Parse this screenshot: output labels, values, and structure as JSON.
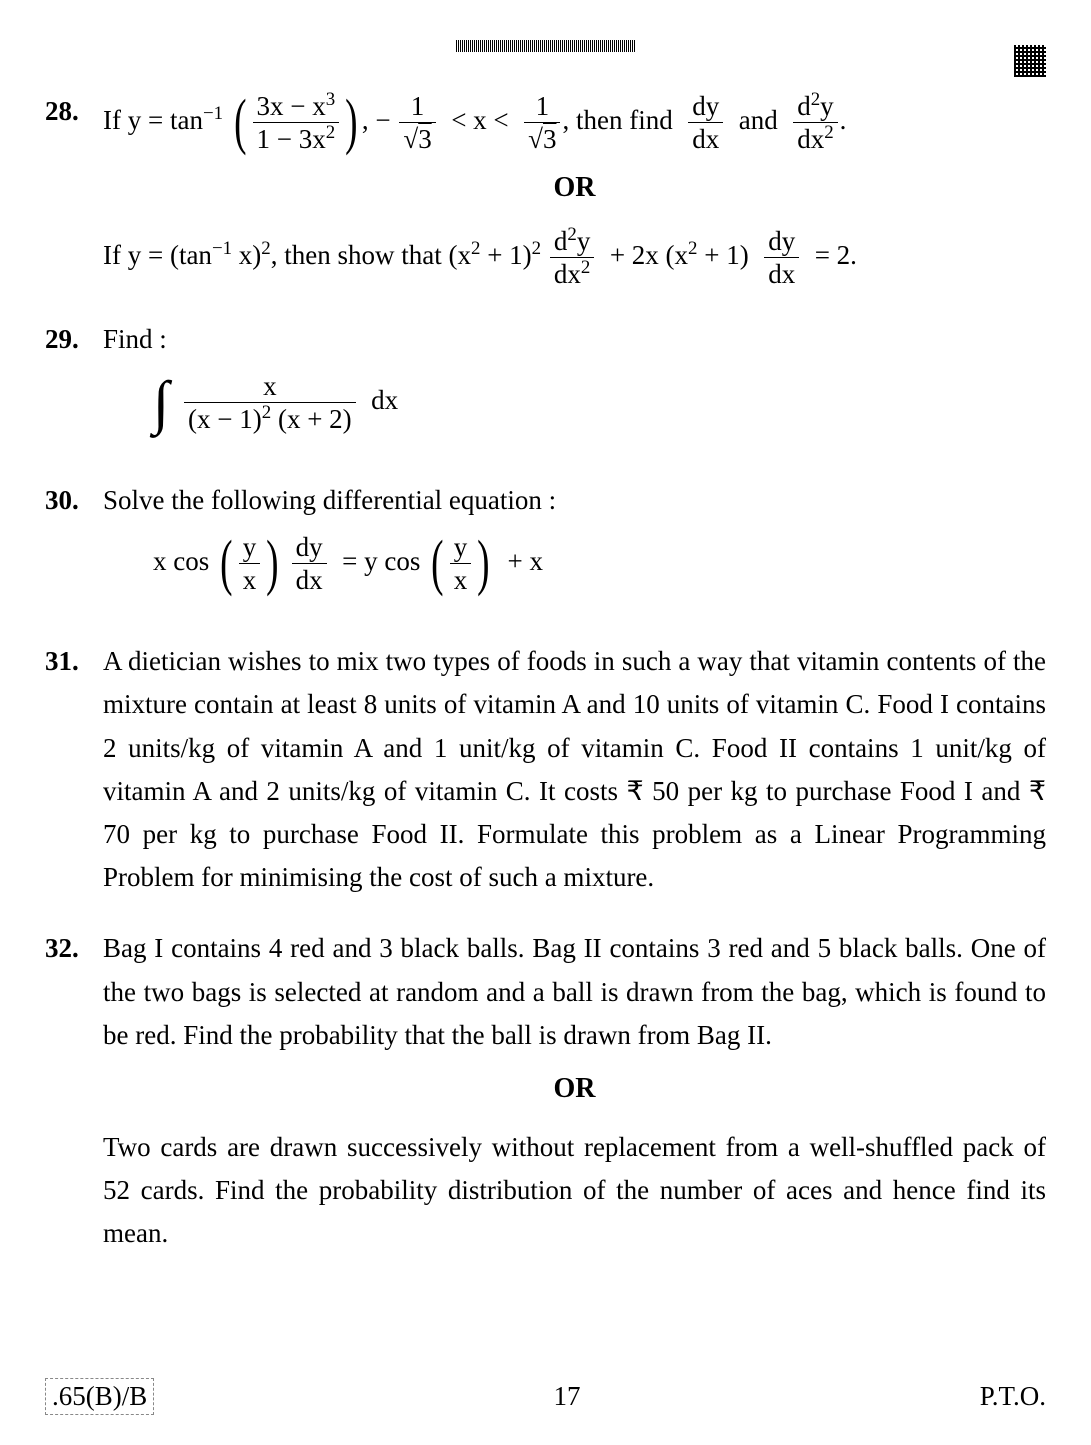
{
  "page": {
    "number": "17",
    "pto": "P.T.O.",
    "code": ".65(B)/B"
  },
  "q28": {
    "num": "28.",
    "prefix": "If  y = tan",
    "sup1": "−1",
    "frac_num": "3x − x",
    "sup2": "3",
    "frac_den": "1 − 3x",
    "sup3": "2",
    "mid1": ", −",
    "f1n": "1",
    "f1d": "3",
    "lt1": "< x <",
    "f2n": "1",
    "f2d": "3",
    "mid2": ", then find",
    "dyn": "dy",
    "dyd": "dx",
    "and": "and",
    "d2yn": "d",
    "d2sup": "2",
    "d2y": "y",
    "d2d": "dx",
    "period": ".",
    "or": "OR",
    "alt_prefix": "If  y = (tan",
    "alt_sup": "−1",
    "alt_x": " x)",
    "alt_sq": "2",
    "alt_show": ", then show that (x",
    "alt_p1": "2",
    "alt_p2": " + 1)",
    "alt_p3": "2",
    "alt_plus": "+ 2x (x",
    "alt_p4": "2",
    "alt_p5": " + 1)",
    "alt_eq": "= 2."
  },
  "q29": {
    "num": "29.",
    "label": "Find :",
    "int_num": "x",
    "int_den1": "(x − 1)",
    "int_sup": "2",
    "int_den2": " (x + 2)",
    "dx": "dx"
  },
  "q30": {
    "num": "30.",
    "label": "Solve the following differential equation :",
    "prefix": "x cos",
    "yn": "y",
    "yd": "x",
    "dy": "dy",
    "dx": "dx",
    "eq": "= y cos",
    "suffix": "+ x"
  },
  "q31": {
    "num": "31.",
    "text": "A dietician wishes to mix two types of foods in such a way that vitamin contents of the mixture contain at least 8 units of vitamin A and 10 units of vitamin C. Food I contains 2 units/kg of vitamin A and 1 unit/kg of vitamin C. Food II contains 1 unit/kg of vitamin A and 2 units/kg of vitamin C. It costs ₹ 50 per kg to purchase Food I and ₹ 70 per kg to purchase Food II. Formulate this problem as a Linear Programming Problem for minimising the cost of such a mixture."
  },
  "q32": {
    "num": "32.",
    "text": "Bag I contains 4 red and 3 black balls. Bag II contains 3 red and 5 black balls. One of the two bags is selected at random and a ball is drawn from the bag, which is found to be red. Find the probability that the ball is drawn from Bag II.",
    "or": "OR",
    "alt": "Two cards are drawn successively without replacement from a well-shuffled pack of 52 cards. Find the probability distribution of the number of aces and hence find its mean."
  }
}
